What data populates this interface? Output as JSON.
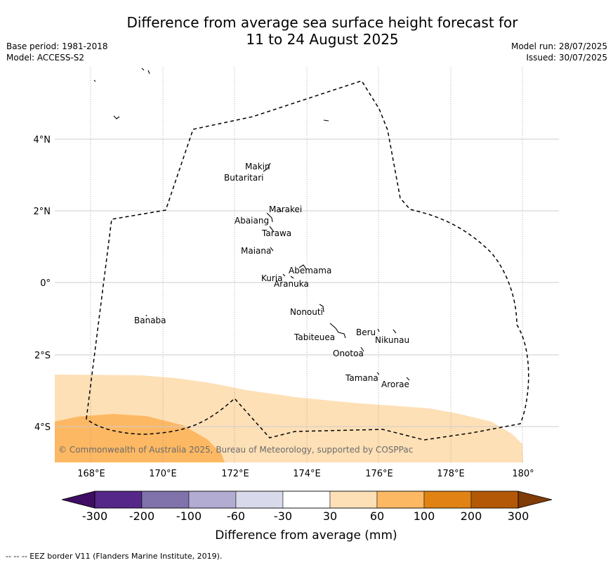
{
  "title": {
    "line1": "Difference from average sea surface height forecast for",
    "line2": "11 to 24 August 2025"
  },
  "meta": {
    "base_period": "Base period: 1981-2018",
    "model": "Model: ACCESS-S2",
    "model_run": "Model run: 28/07/2025",
    "issued": "Issued: 30/07/2025"
  },
  "axes": {
    "lon_ticks": [
      "168°E",
      "170°E",
      "172°E",
      "174°E",
      "176°E",
      "178°E",
      "180°"
    ],
    "lat_ticks": [
      "4°N",
      "2°N",
      "0°",
      "2°S",
      "4°S"
    ]
  },
  "islands": [
    {
      "name": "Makin"
    },
    {
      "name": "Butaritari"
    },
    {
      "name": "Marakei"
    },
    {
      "name": "Abaiang"
    },
    {
      "name": "Tarawa"
    },
    {
      "name": "Maiana"
    },
    {
      "name": "Abemama"
    },
    {
      "name": "Kuria"
    },
    {
      "name": "Aranuka"
    },
    {
      "name": "Nonouti"
    },
    {
      "name": "Banaba"
    },
    {
      "name": "Beru"
    },
    {
      "name": "Nikunau"
    },
    {
      "name": "Tabiteuea"
    },
    {
      "name": "Onotoa"
    },
    {
      "name": "Tamana"
    },
    {
      "name": "Arorae"
    }
  ],
  "copyright": "© Commonwealth of Australia 2025, Bureau of Meteorology, supported by COSPPac",
  "legend": {
    "label": "Difference from average (mm)",
    "ticks": [
      "-300",
      "-200",
      "-100",
      "-60",
      "-30",
      "30",
      "60",
      "100",
      "200",
      "300"
    ],
    "colors": [
      "#3f0d63",
      "#542788",
      "#8073ac",
      "#b2abd2",
      "#d8daeb",
      "#ffffff",
      "#fee0b6",
      "#fdb863",
      "#e08214",
      "#b35806",
      "#7f3b08"
    ]
  },
  "footer": "--  --  -- EEZ border V11 (Flanders Marine Institute, 2019)."
}
